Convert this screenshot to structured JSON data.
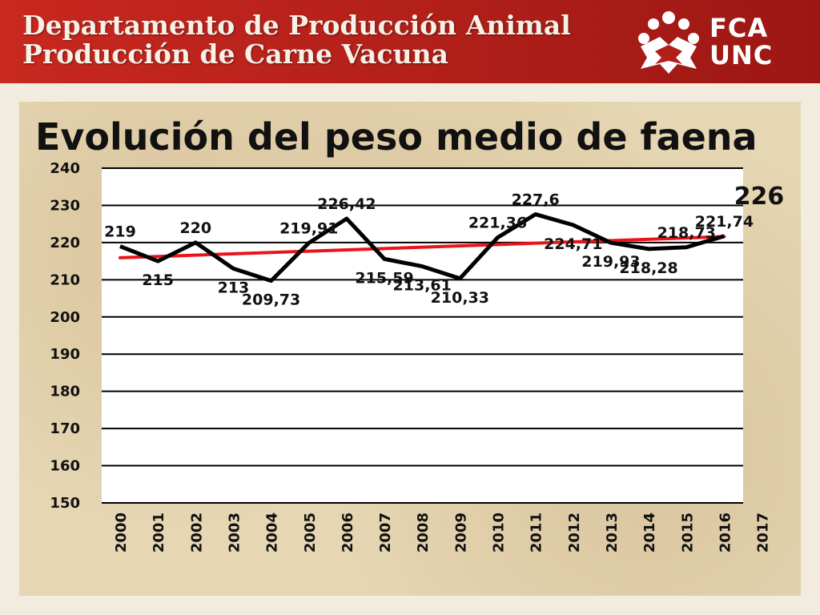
{
  "header": {
    "title_line1": "Departamento de Producción Animal",
    "title_line2": "Producción de Carne Vacuna",
    "logo_line1": "FCA",
    "logo_line2": "UNC",
    "logo_icon": "fca-unc-emblem-icon"
  },
  "colors": {
    "header_red": "#b11f19",
    "series_line": "#000000",
    "trend_line": "#e8141a",
    "panel_bg": "#e6d6b3",
    "plot_bg": "#ffffff"
  },
  "chart_data": {
    "type": "line",
    "title": "Evolución del peso medio de faena",
    "xlabel": "",
    "ylabel": "",
    "categories": [
      "2000",
      "2001",
      "2002",
      "2003",
      "2004",
      "2005",
      "2006",
      "2007",
      "2008",
      "2009",
      "2010",
      "2011",
      "2012",
      "2013",
      "2014",
      "2015",
      "2016",
      "2017"
    ],
    "series": [
      {
        "values": [
          219,
          215,
          220,
          213,
          209.73,
          219.91,
          226.42,
          215.59,
          213.61,
          210.33,
          221.36,
          227.6,
          224.71,
          219.93,
          218.28,
          218.73,
          221.74,
          null
        ],
        "labels": [
          "219",
          "215",
          "220",
          "213",
          "209,73",
          "219,91",
          "226,42",
          "215,59",
          "213,61",
          "210,33",
          "221,36",
          "227,6",
          "224,71",
          "219,93",
          "218,28",
          "218,73",
          "221,74",
          ""
        ],
        "color": "#000000"
      }
    ],
    "trendline": {
      "color": "#e8141a",
      "start_value": 215.9,
      "end_value": 221.6,
      "from": "2000",
      "to": "2016"
    },
    "annotation": {
      "text": "226",
      "position": "top-right"
    },
    "ylim": [
      150,
      240
    ],
    "yticks": [
      150,
      160,
      170,
      180,
      190,
      200,
      210,
      220,
      230,
      240
    ],
    "grid": true,
    "legend": "none"
  }
}
